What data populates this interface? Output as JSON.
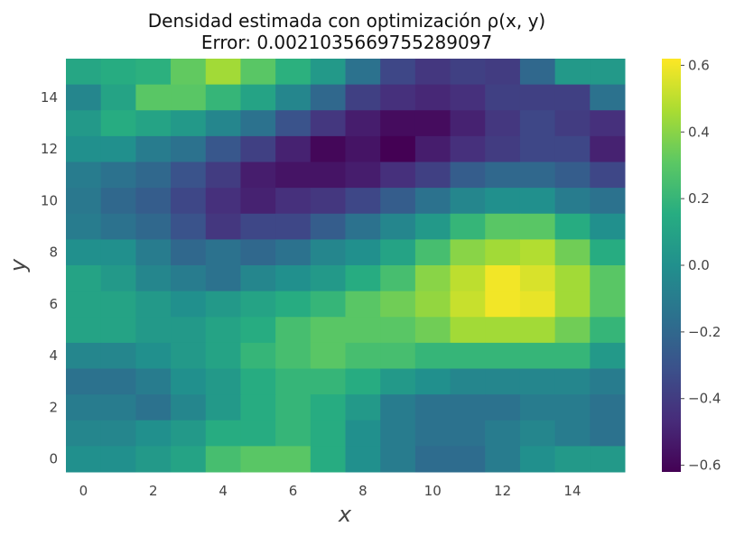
{
  "chart_data": {
    "type": "heatmap",
    "title": "Densidad estimada con optimización ρ(x, y)",
    "subtitle": "Error: 0.002103566975528909​7",
    "xlabel": "x",
    "ylabel": "y",
    "xlim": [
      -0.5,
      15.5
    ],
    "ylim": [
      -0.5,
      15.5
    ],
    "x_ticks": [
      "0",
      "2",
      "4",
      "6",
      "8",
      "10",
      "12",
      "14"
    ],
    "y_ticks": [
      "0",
      "2",
      "4",
      "6",
      "8",
      "10",
      "12",
      "14"
    ],
    "grid": false,
    "colormap": "viridis",
    "colorbar": {
      "vmin": -0.62,
      "vmax": 0.62,
      "ticks": [
        "−0.6",
        "−0.4",
        "−0.2",
        "0.0",
        "0.2",
        "0.4",
        "0.6"
      ],
      "tick_values": [
        -0.6,
        -0.4,
        -0.2,
        0.0,
        0.2,
        0.4,
        0.6
      ]
    },
    "z_rows_top_to_bottom": [
      [
        0.12,
        0.15,
        0.17,
        0.32,
        0.45,
        0.3,
        0.17,
        0.05,
        -0.15,
        -0.35,
        -0.42,
        -0.38,
        -0.4,
        -0.2,
        0.05,
        0.05
      ],
      [
        -0.05,
        0.1,
        0.3,
        0.3,
        0.2,
        0.1,
        -0.05,
        -0.2,
        -0.38,
        -0.45,
        -0.48,
        -0.45,
        -0.38,
        -0.38,
        -0.38,
        -0.15
      ],
      [
        0.05,
        0.15,
        0.1,
        0.05,
        -0.05,
        -0.15,
        -0.3,
        -0.42,
        -0.52,
        -0.58,
        -0.58,
        -0.5,
        -0.42,
        -0.35,
        -0.4,
        -0.45
      ],
      [
        0.0,
        0.0,
        -0.1,
        -0.15,
        -0.28,
        -0.38,
        -0.5,
        -0.6,
        -0.55,
        -0.62,
        -0.52,
        -0.45,
        -0.4,
        -0.35,
        -0.35,
        -0.5
      ],
      [
        -0.1,
        -0.15,
        -0.2,
        -0.3,
        -0.4,
        -0.52,
        -0.55,
        -0.55,
        -0.52,
        -0.45,
        -0.38,
        -0.25,
        -0.2,
        -0.2,
        -0.25,
        -0.35
      ],
      [
        -0.12,
        -0.2,
        -0.25,
        -0.35,
        -0.45,
        -0.5,
        -0.45,
        -0.42,
        -0.35,
        -0.25,
        -0.15,
        -0.05,
        0.0,
        0.0,
        -0.1,
        -0.15
      ],
      [
        -0.1,
        -0.15,
        -0.2,
        -0.3,
        -0.42,
        -0.35,
        -0.35,
        -0.25,
        -0.15,
        -0.05,
        0.05,
        0.2,
        0.3,
        0.3,
        0.15,
        0.0
      ],
      [
        0.0,
        0.0,
        -0.1,
        -0.2,
        -0.15,
        -0.2,
        -0.15,
        -0.05,
        0.0,
        0.1,
        0.25,
        0.4,
        0.45,
        0.48,
        0.35,
        0.15
      ],
      [
        0.1,
        0.05,
        -0.05,
        -0.1,
        -0.15,
        -0.05,
        0.0,
        0.05,
        0.15,
        0.25,
        0.4,
        0.5,
        0.6,
        0.55,
        0.45,
        0.3
      ],
      [
        0.1,
        0.1,
        0.05,
        0.0,
        0.05,
        0.1,
        0.15,
        0.2,
        0.3,
        0.35,
        0.42,
        0.52,
        0.6,
        0.58,
        0.45,
        0.3
      ],
      [
        0.1,
        0.1,
        0.05,
        0.05,
        0.1,
        0.15,
        0.25,
        0.3,
        0.3,
        0.3,
        0.35,
        0.45,
        0.45,
        0.45,
        0.35,
        0.2
      ],
      [
        -0.05,
        -0.05,
        0.0,
        0.05,
        0.1,
        0.2,
        0.25,
        0.3,
        0.25,
        0.25,
        0.2,
        0.2,
        0.2,
        0.2,
        0.2,
        0.05
      ],
      [
        -0.15,
        -0.15,
        -0.1,
        0.0,
        0.05,
        0.15,
        0.2,
        0.2,
        0.15,
        0.05,
        0.0,
        -0.05,
        -0.05,
        -0.05,
        -0.05,
        -0.1
      ],
      [
        -0.1,
        -0.1,
        -0.15,
        -0.05,
        0.05,
        0.15,
        0.2,
        0.15,
        0.05,
        -0.1,
        -0.15,
        -0.15,
        -0.15,
        -0.1,
        -0.1,
        -0.15
      ],
      [
        -0.05,
        -0.05,
        0.0,
        0.05,
        0.15,
        0.15,
        0.2,
        0.15,
        0.0,
        -0.1,
        -0.15,
        -0.15,
        -0.1,
        -0.05,
        -0.1,
        -0.15
      ],
      [
        0.0,
        0.0,
        0.05,
        0.1,
        0.25,
        0.3,
        0.3,
        0.15,
        0.0,
        -0.1,
        -0.18,
        -0.18,
        -0.1,
        0.0,
        0.05,
        0.05
      ]
    ]
  }
}
